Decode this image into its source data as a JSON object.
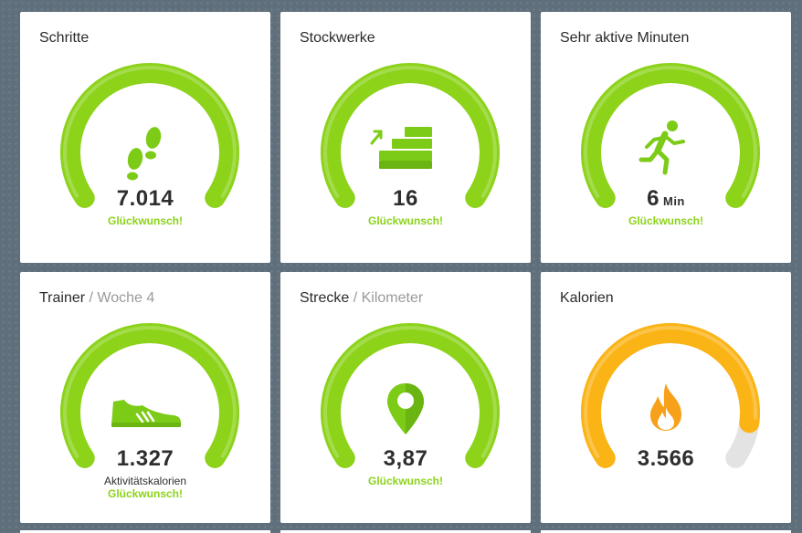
{
  "colors": {
    "goal_green": "#8cd31a",
    "calorie_orange": "#fbb416",
    "track_grey": "#e3e3e3",
    "icon_green": "#7ccb16"
  },
  "tiles": {
    "steps": {
      "title": "Schritte",
      "value": "7.014",
      "congrats": "Glückwunsch!",
      "icon": "footsteps-icon",
      "progress": 1.0
    },
    "floors": {
      "title": "Stockwerke",
      "value": "16",
      "congrats": "Glückwunsch!",
      "icon": "stairs-icon",
      "progress": 1.0
    },
    "active": {
      "title": "Sehr aktive Minuten",
      "value": "6",
      "unit": "Min",
      "congrats": "Glückwunsch!",
      "icon": "running-person-icon",
      "progress": 1.0
    },
    "trainer": {
      "title": "Trainer",
      "subtitle": " / Woche 4",
      "value": "1.327",
      "caption": "Aktivitätskalorien",
      "congrats": "Glückwunsch!",
      "icon": "shoe-icon",
      "progress": 1.0
    },
    "distance": {
      "title": "Strecke",
      "subtitle": " / Kilometer",
      "value": "3,87",
      "congrats": "Glückwunsch!",
      "icon": "map-pin-icon",
      "progress": 1.0
    },
    "calories": {
      "title": "Kalorien",
      "value": "3.566",
      "icon": "flame-icon",
      "progress": 0.89
    }
  }
}
